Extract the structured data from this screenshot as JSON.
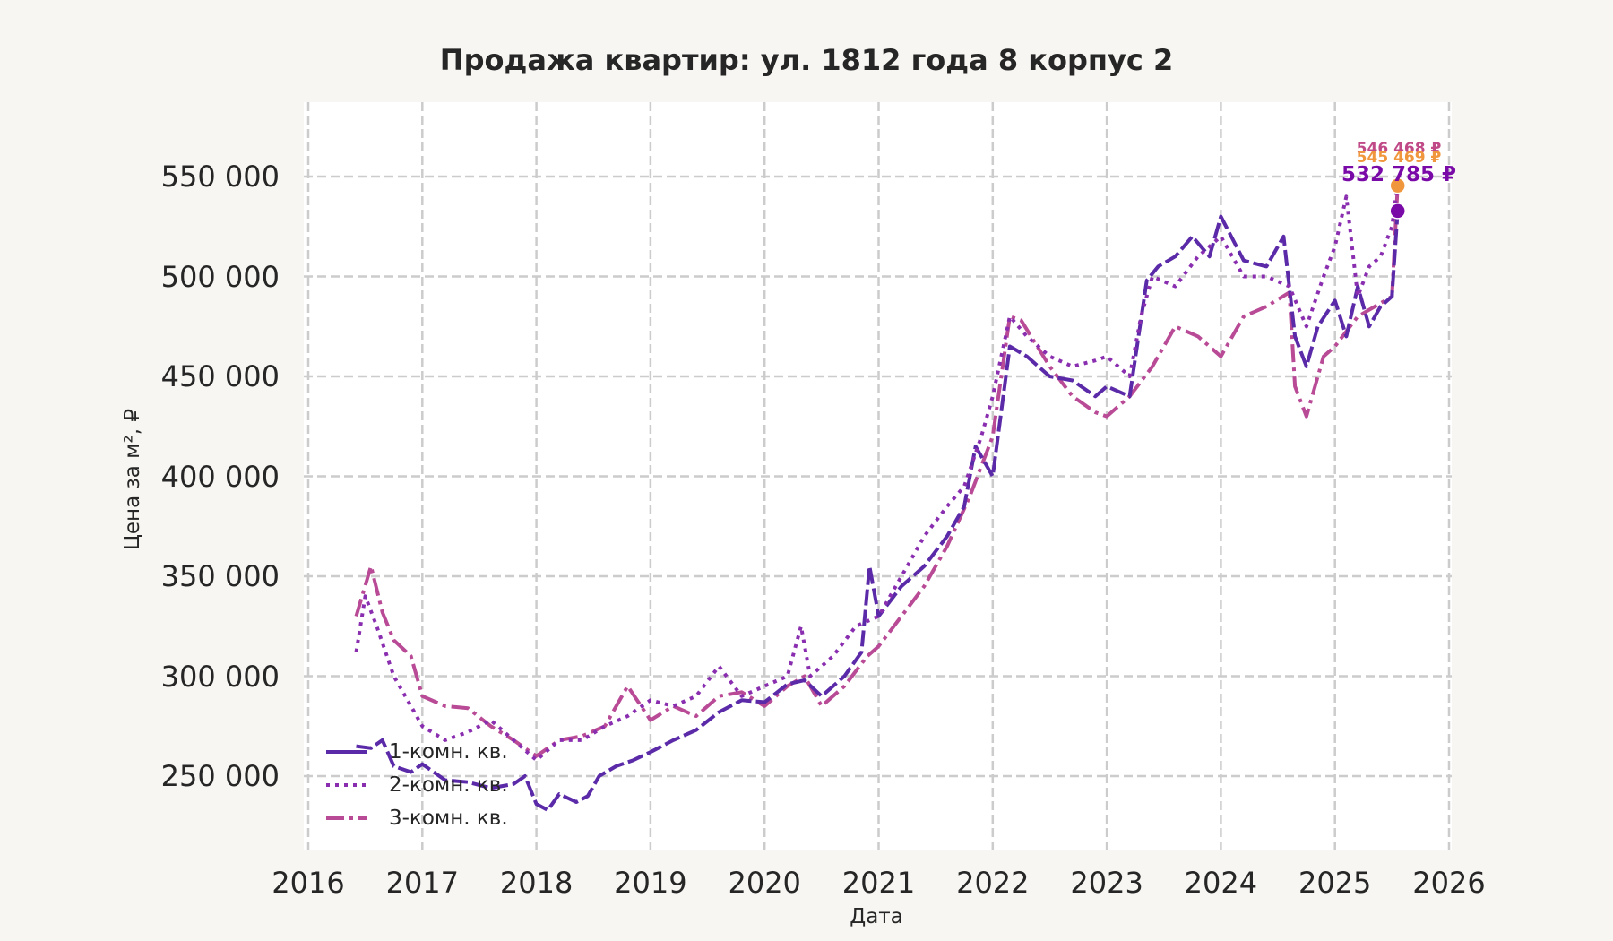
{
  "title": "Продажа квартир: ул. 1812 года 8 корпус 2",
  "colors": {
    "background": "#f7f6f2",
    "plot_background": "#ffffff",
    "grid": "#cccccc",
    "series_1": "#5b2aa8",
    "series_2": "#8a2eb0",
    "series_3": "#b84a96",
    "marker_orange": "#f0963c",
    "marker_purple": "#7a0aa8"
  },
  "end_labels": [
    {
      "text": "546 468 ₽",
      "color": "#c04a88"
    },
    {
      "text": "545 469 ₽",
      "color": "#f0963c"
    },
    {
      "text": "532 785 ₽",
      "color": "#7a0aa8"
    }
  ],
  "chart_data": {
    "type": "line",
    "title": "Продажа квартир: ул. 1812 года 8 корпус 2",
    "xlabel": "Дата",
    "ylabel": "Цена за м², ₽",
    "xlim": [
      2016,
      2026
    ],
    "ylim": [
      215000,
      585000
    ],
    "x_ticks": [
      "2016",
      "2017",
      "2018",
      "2019",
      "2020",
      "2021",
      "2022",
      "2023",
      "2024",
      "2025",
      "2026"
    ],
    "y_ticks": [
      "250 000",
      "300 000",
      "350 000",
      "400 000",
      "450 000",
      "500 000",
      "550 000"
    ],
    "grid": true,
    "legend_position": "lower left",
    "series": [
      {
        "name": "1-комн. кв.",
        "style": "dashed",
        "x": [
          2016.42,
          2016.55,
          2016.65,
          2016.75,
          2016.9,
          2017.0,
          2017.2,
          2017.4,
          2017.6,
          2017.8,
          2017.9,
          2018.0,
          2018.1,
          2018.2,
          2018.35,
          2018.45,
          2018.55,
          2018.7,
          2018.85,
          2019.0,
          2019.2,
          2019.4,
          2019.6,
          2019.8,
          2020.0,
          2020.2,
          2020.35,
          2020.5,
          2020.7,
          2020.85,
          2020.92,
          2021.0,
          2021.2,
          2021.4,
          2021.6,
          2021.75,
          2021.85,
          2022.0,
          2022.15,
          2022.3,
          2022.5,
          2022.7,
          2022.9,
          2023.0,
          2023.2,
          2023.35,
          2023.45,
          2023.6,
          2023.75,
          2023.9,
          2024.0,
          2024.2,
          2024.4,
          2024.55,
          2024.65,
          2024.75,
          2024.85,
          2025.0,
          2025.1,
          2025.2,
          2025.3,
          2025.4,
          2025.5,
          2025.55
        ],
        "values": [
          265000,
          264000,
          268000,
          255000,
          252000,
          256000,
          248000,
          247000,
          244000,
          246000,
          250000,
          236000,
          233000,
          241000,
          237000,
          240000,
          250000,
          255000,
          258000,
          262000,
          268000,
          273000,
          282000,
          288000,
          287000,
          296000,
          298000,
          290000,
          300000,
          312000,
          355000,
          330000,
          345000,
          355000,
          370000,
          385000,
          415000,
          400000,
          465000,
          460000,
          450000,
          448000,
          440000,
          445000,
          440000,
          498000,
          505000,
          510000,
          520000,
          510000,
          530000,
          508000,
          505000,
          520000,
          470000,
          455000,
          475000,
          488000,
          470000,
          495000,
          475000,
          485000,
          490000,
          532785
        ]
      },
      {
        "name": "2-комн. кв.",
        "style": "dotted",
        "x": [
          2016.42,
          2016.5,
          2016.6,
          2016.75,
          2016.9,
          2017.0,
          2017.2,
          2017.4,
          2017.6,
          2017.8,
          2018.0,
          2018.2,
          2018.4,
          2018.6,
          2018.8,
          2019.0,
          2019.2,
          2019.4,
          2019.6,
          2019.8,
          2020.0,
          2020.2,
          2020.32,
          2020.4,
          2020.6,
          2020.8,
          2021.0,
          2021.2,
          2021.4,
          2021.6,
          2021.75,
          2021.9,
          2022.0,
          2022.15,
          2022.3,
          2022.5,
          2022.7,
          2022.9,
          2023.0,
          2023.2,
          2023.3,
          2023.4,
          2023.6,
          2023.8,
          2024.0,
          2024.2,
          2024.4,
          2024.6,
          2024.75,
          2024.9,
          2025.0,
          2025.1,
          2025.2,
          2025.3,
          2025.4,
          2025.5,
          2025.55
        ],
        "values": [
          312000,
          340000,
          325000,
          300000,
          285000,
          275000,
          268000,
          272000,
          278000,
          268000,
          258000,
          268000,
          268000,
          275000,
          280000,
          288000,
          285000,
          290000,
          305000,
          290000,
          295000,
          300000,
          325000,
          300000,
          310000,
          325000,
          330000,
          350000,
          370000,
          385000,
          395000,
          420000,
          440000,
          480000,
          470000,
          460000,
          455000,
          458000,
          460000,
          450000,
          480000,
          500000,
          495000,
          510000,
          520000,
          500000,
          500000,
          495000,
          475000,
          500000,
          515000,
          540000,
          490000,
          505000,
          510000,
          525000,
          546468
        ]
      },
      {
        "name": "3-комн. кв.",
        "style": "dashdot",
        "x": [
          2016.42,
          2016.55,
          2016.65,
          2016.75,
          2016.9,
          2017.0,
          2017.2,
          2017.4,
          2017.6,
          2017.8,
          2018.0,
          2018.2,
          2018.4,
          2018.6,
          2018.8,
          2019.0,
          2019.2,
          2019.4,
          2019.6,
          2019.8,
          2020.0,
          2020.2,
          2020.35,
          2020.5,
          2020.7,
          2020.9,
          2021.0,
          2021.2,
          2021.4,
          2021.6,
          2021.8,
          2022.0,
          2022.15,
          2022.25,
          2022.5,
          2022.7,
          2022.9,
          2023.0,
          2023.2,
          2023.4,
          2023.6,
          2023.8,
          2024.0,
          2024.2,
          2024.4,
          2024.6,
          2024.65,
          2024.75,
          2024.9,
          2025.0,
          2025.2,
          2025.35,
          2025.5,
          2025.55
        ],
        "values": [
          330000,
          355000,
          332000,
          318000,
          310000,
          290000,
          285000,
          284000,
          275000,
          268000,
          260000,
          268000,
          270000,
          275000,
          295000,
          278000,
          285000,
          280000,
          290000,
          292000,
          285000,
          295000,
          300000,
          285000,
          295000,
          310000,
          315000,
          330000,
          345000,
          365000,
          390000,
          420000,
          480000,
          478000,
          455000,
          440000,
          432000,
          430000,
          440000,
          455000,
          475000,
          470000,
          460000,
          480000,
          485000,
          492000,
          445000,
          430000,
          460000,
          465000,
          480000,
          485000,
          490000,
          545469
        ]
      }
    ],
    "end_markers": [
      {
        "x": 2025.55,
        "value": 545469,
        "color": "#f0963c"
      },
      {
        "x": 2025.55,
        "value": 532785,
        "color": "#7a0aa8"
      }
    ]
  }
}
